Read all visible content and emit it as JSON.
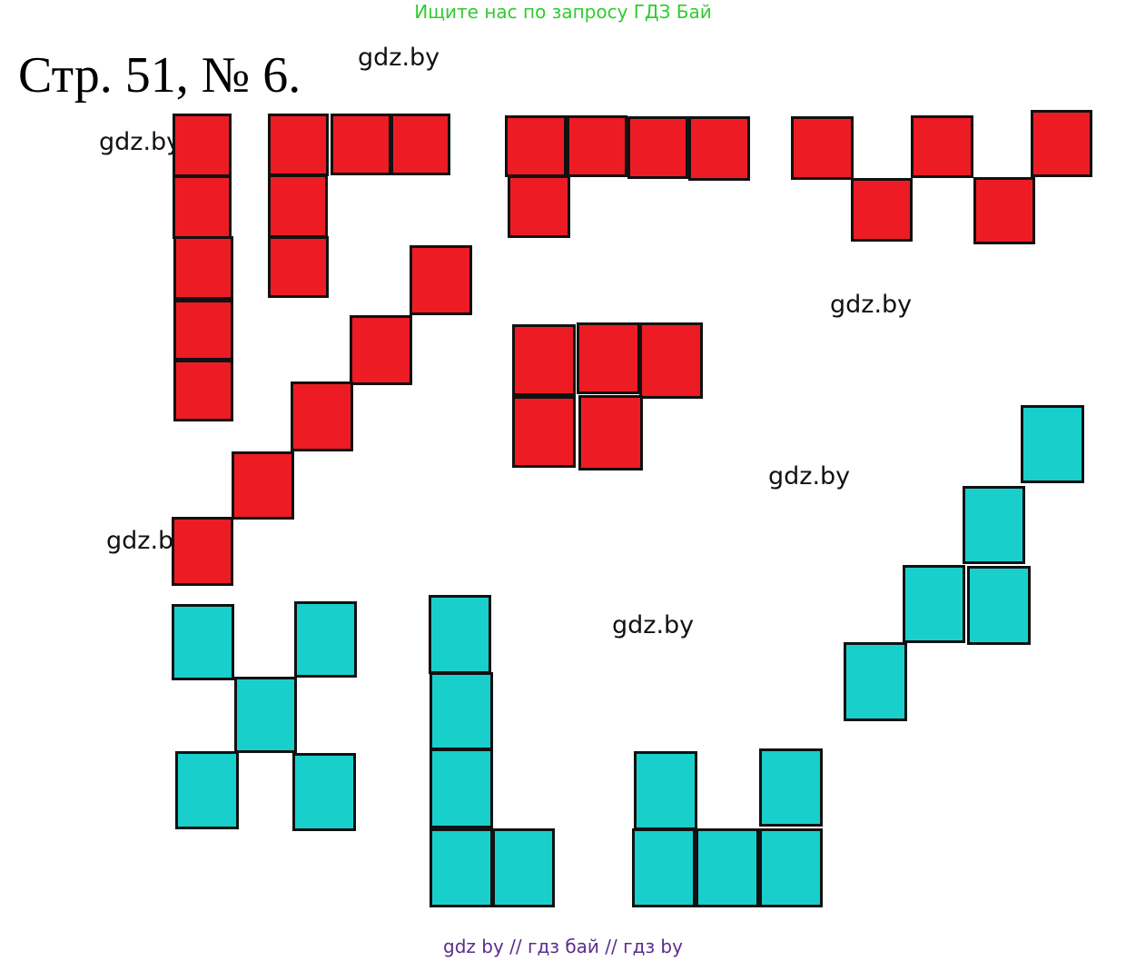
{
  "banner": "Ищите нас по запросу ГДЗ Бай",
  "title": "Стр. 51, № 6.",
  "watermarks": [
    "gdz.by",
    "gdz.by",
    "gdz.by",
    "gdz.by",
    "gdz.by",
    "gdz.by"
  ],
  "footer": "gdz by  //  гдз бай  //  гдз by",
  "colors": {
    "red": "#ed1c24",
    "teal": "#19cfcc",
    "banner": "#2ecc2e",
    "footer": "#5b2d8e"
  }
}
